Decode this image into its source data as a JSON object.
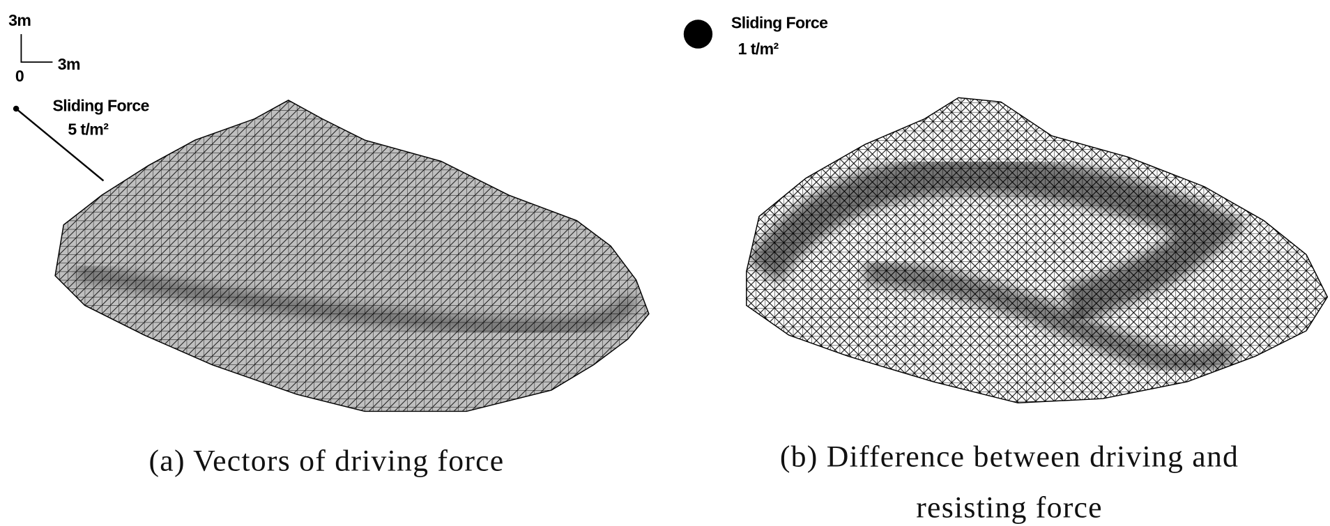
{
  "panels": [
    {
      "scale": {
        "vertical": "3m",
        "horizontal": "3m",
        "origin": "0"
      },
      "legend": {
        "label": "Sliding Force",
        "value": "5 t/m²"
      },
      "caption": [
        "(a) Vectors of driving force"
      ]
    },
    {
      "legend": {
        "label": "Sliding Force",
        "value": "1 t/m²"
      },
      "caption": [
        "(b) Difference between driving and",
        "resisting force"
      ]
    }
  ]
}
